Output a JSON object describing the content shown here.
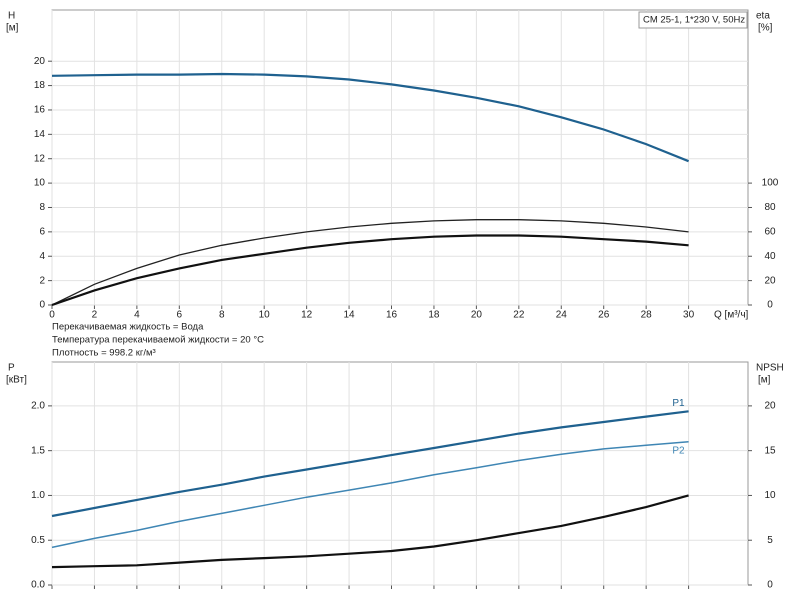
{
  "chart_data": [
    {
      "type": "line",
      "title": "CM 25-1, 1*230 V, 50Hz",
      "ylabel": "H",
      "yunit": "[м]",
      "y2label": "eta",
      "y2unit": "[%]",
      "xlabel": "Q [м³/ч]",
      "notes": [
        "Перекачиваемая жидкость = Вода",
        "Температура перекачиваемой жидкости = 20 °C",
        "Плотность = 998.2 кг/м³"
      ],
      "x": [
        0,
        2,
        4,
        6,
        8,
        10,
        12,
        14,
        16,
        18,
        20,
        22,
        24,
        26,
        28,
        30
      ],
      "xlim": [
        0,
        32.8
      ],
      "xticks": [
        0,
        2,
        4,
        6,
        8,
        10,
        12,
        14,
        16,
        18,
        20,
        22,
        24,
        26,
        28,
        30
      ],
      "ylim": [
        0,
        24.2
      ],
      "yticks": [
        0,
        2,
        4,
        6,
        8,
        10,
        12,
        14,
        16,
        18,
        20
      ],
      "y2lim": [
        0,
        242
      ],
      "y2ticks": [
        0,
        20,
        40,
        60,
        80,
        100
      ],
      "grid": true,
      "show_xtick_labels": true,
      "series": [
        {
          "color": "#1f618f",
          "width": 2.2,
          "values": [
            18.8,
            18.85,
            18.9,
            18.9,
            18.95,
            18.9,
            18.75,
            18.5,
            18.1,
            17.6,
            17.0,
            16.3,
            15.4,
            14.4,
            13.2,
            11.8
          ]
        },
        {
          "color": "#222222",
          "width": 1.3,
          "axis": "y2",
          "values": [
            0,
            17,
            30,
            41,
            49,
            55,
            60,
            64,
            67,
            69,
            70,
            70,
            69,
            67,
            64,
            60
          ]
        },
        {
          "color": "#111111",
          "width": 2.2,
          "axis": "y2",
          "values": [
            0,
            12,
            22,
            30,
            37,
            42,
            47,
            51,
            54,
            56,
            57,
            57,
            56,
            54,
            52,
            49
          ]
        }
      ]
    },
    {
      "type": "line",
      "ylabel": "P",
      "yunit": "[кВт]",
      "y2label": "NPSH",
      "y2unit": "[м]",
      "x": [
        0,
        2,
        4,
        6,
        8,
        10,
        12,
        14,
        16,
        18,
        20,
        22,
        24,
        26,
        28,
        30
      ],
      "xlim": [
        0,
        32.8
      ],
      "xticks": [
        0,
        2,
        4,
        6,
        8,
        10,
        12,
        14,
        16,
        18,
        20,
        22,
        24,
        26,
        28,
        30
      ],
      "ylim": [
        0,
        2.49
      ],
      "yticks": [
        {
          "value": 0,
          "label": "0.0"
        },
        0.5,
        {
          "value": 1,
          "label": "1.0"
        },
        1.5,
        {
          "value": 2,
          "label": "2.0"
        }
      ],
      "y2lim": [
        0,
        24.9
      ],
      "y2ticks": [
        0,
        5,
        10,
        15,
        20
      ],
      "grid": true,
      "show_xtick_labels": false,
      "series": [
        {
          "name": "P1",
          "color": "#1f618f",
          "width": 2.2,
          "values": [
            0.77,
            0.86,
            0.95,
            1.04,
            1.12,
            1.21,
            1.29,
            1.37,
            1.45,
            1.53,
            1.61,
            1.69,
            1.76,
            1.82,
            1.88,
            1.94
          ]
        },
        {
          "name": "P2",
          "color": "#3f86b4",
          "width": 1.5,
          "values": [
            0.42,
            0.52,
            0.61,
            0.71,
            0.8,
            0.89,
            0.98,
            1.06,
            1.14,
            1.23,
            1.31,
            1.39,
            1.46,
            1.52,
            1.56,
            1.6
          ]
        },
        {
          "color": "#111111",
          "width": 2.2,
          "axis": "y2",
          "values": [
            2.0,
            2.1,
            2.2,
            2.5,
            2.8,
            3.0,
            3.2,
            3.5,
            3.8,
            4.3,
            5.0,
            5.8,
            6.6,
            7.6,
            8.7,
            10.0
          ]
        }
      ]
    }
  ]
}
